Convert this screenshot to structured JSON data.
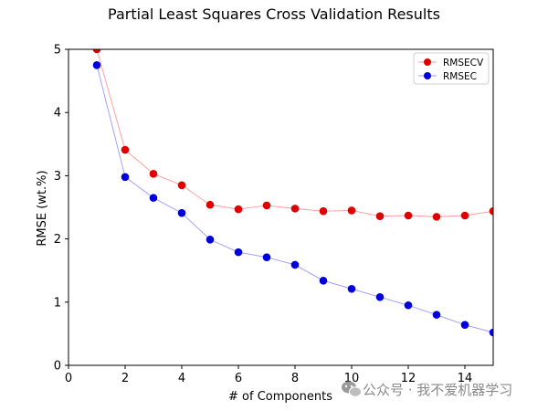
{
  "chart_data": {
    "type": "line",
    "title": "Partial Least Squares Cross Validation Results",
    "xlabel": "# of Components",
    "ylabel": "RMSE (wt.%)",
    "xlim": [
      0,
      15
    ],
    "ylim": [
      0,
      5
    ],
    "xticks": [
      0,
      2,
      4,
      6,
      8,
      10,
      12,
      14
    ],
    "yticks": [
      0,
      1,
      2,
      3,
      4,
      5
    ],
    "grid": false,
    "legend_position": "top-right",
    "x": [
      1,
      2,
      3,
      4,
      5,
      6,
      7,
      8,
      9,
      10,
      11,
      12,
      13,
      14,
      15
    ],
    "series": [
      {
        "name": "RMSECV",
        "color": "#e00000",
        "line_color": "#ff9999",
        "values": [
          5.0,
          3.41,
          3.03,
          2.85,
          2.54,
          2.47,
          2.53,
          2.48,
          2.44,
          2.45,
          2.36,
          2.37,
          2.35,
          2.37,
          2.44
        ]
      },
      {
        "name": "RMSEC",
        "color": "#0000dd",
        "line_color": "#9999ff",
        "values": [
          4.75,
          2.98,
          2.65,
          2.41,
          1.99,
          1.79,
          1.71,
          1.59,
          1.34,
          1.21,
          1.08,
          0.95,
          0.8,
          0.64,
          0.52
        ]
      }
    ]
  },
  "watermark": {
    "text": "公众号 · 我不爱机器学习",
    "icon": "wechat-icon"
  }
}
